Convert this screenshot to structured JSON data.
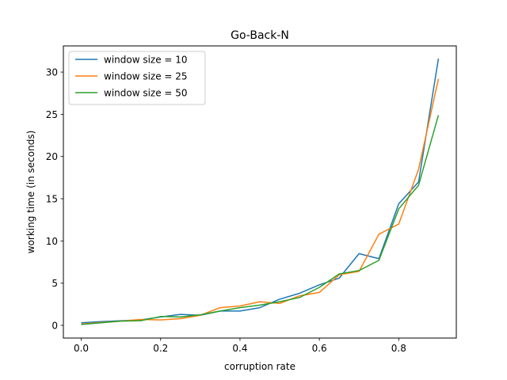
{
  "chart_data": {
    "type": "line",
    "title": "Go-Back-N",
    "xlabel": "corruption rate",
    "ylabel": "working time (in seconds)",
    "xlim": [
      -0.045,
      0.945
    ],
    "ylim": [
      -1.5,
      33.1
    ],
    "xticks": [
      0.0,
      0.2,
      0.4,
      0.6,
      0.8
    ],
    "xtick_labels": [
      "0.0",
      "0.2",
      "0.4",
      "0.6",
      "0.8"
    ],
    "yticks": [
      0,
      5,
      10,
      15,
      20,
      25,
      30
    ],
    "ytick_labels": [
      "0",
      "5",
      "10",
      "15",
      "20",
      "25",
      "30"
    ],
    "grid": false,
    "legend_position": "upper-left",
    "x": [
      0.0,
      0.05,
      0.1,
      0.15,
      0.2,
      0.25,
      0.3,
      0.35,
      0.4,
      0.45,
      0.5,
      0.55,
      0.6,
      0.65,
      0.7,
      0.75,
      0.8,
      0.85,
      0.9
    ],
    "series": [
      {
        "name": "window size = 10",
        "color": "#1f77b4",
        "values": [
          0.3,
          0.45,
          0.55,
          0.65,
          1.0,
          1.3,
          1.2,
          1.7,
          1.7,
          2.1,
          3.1,
          3.8,
          4.8,
          5.6,
          8.5,
          7.9,
          14.4,
          17.0,
          31.6
        ]
      },
      {
        "name": "window size = 25",
        "color": "#ff7f0e",
        "values": [
          0.15,
          0.35,
          0.5,
          0.7,
          0.65,
          0.8,
          1.2,
          2.1,
          2.3,
          2.8,
          2.6,
          3.5,
          3.9,
          6.0,
          6.4,
          10.8,
          12.0,
          18.5,
          29.2
        ]
      },
      {
        "name": "window size = 50",
        "color": "#2ca02c",
        "values": [
          0.1,
          0.3,
          0.5,
          0.55,
          1.05,
          1.0,
          1.25,
          1.7,
          2.1,
          2.4,
          2.8,
          3.3,
          4.5,
          6.1,
          6.5,
          7.7,
          13.8,
          16.6,
          24.9
        ]
      }
    ]
  }
}
